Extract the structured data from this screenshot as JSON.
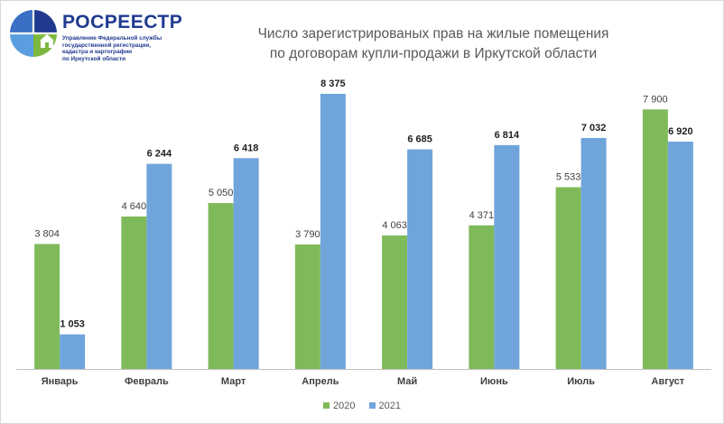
{
  "logo": {
    "name": "РОСРЕЕСТР",
    "subtitle_lines": [
      "Управление Федеральной службы",
      "государственной регистрации,",
      "кадастра и картографии",
      "по Иркутской области"
    ]
  },
  "colors": {
    "series_2020": "#7fba5a",
    "series_2021": "#70a5db",
    "axis": "#bfbfbf",
    "label_2020": "#404040",
    "label_2021": "#1f1f1f",
    "text": "#595959"
  },
  "chart_data": {
    "type": "bar",
    "title_lines": [
      "Число зарегистрированых  прав на жилые помещения",
      "по договорам  купли-продажи  в Иркутской области"
    ],
    "categories": [
      "Январь",
      "Февраль",
      "Март",
      "Апрель",
      "Май",
      "Июнь",
      "Июль",
      "Август"
    ],
    "series": [
      {
        "name": "2020",
        "values": [
          3804,
          4640,
          5050,
          3790,
          4063,
          4371,
          5533,
          7900
        ],
        "labels": [
          "3 804",
          "4 640",
          "5 050",
          "3 790",
          "4 063",
          "4 371",
          "5 533",
          "7 900"
        ]
      },
      {
        "name": "2021",
        "values": [
          1053,
          6244,
          6418,
          8375,
          6685,
          6814,
          7032,
          6920
        ],
        "labels": [
          "1 053",
          "6 244",
          "6 418",
          "8 375",
          "6 685",
          "6 814",
          "7 032",
          "6 920"
        ]
      }
    ],
    "ylim": [
      0,
      8375
    ],
    "legend": "bottom",
    "grid": false
  }
}
